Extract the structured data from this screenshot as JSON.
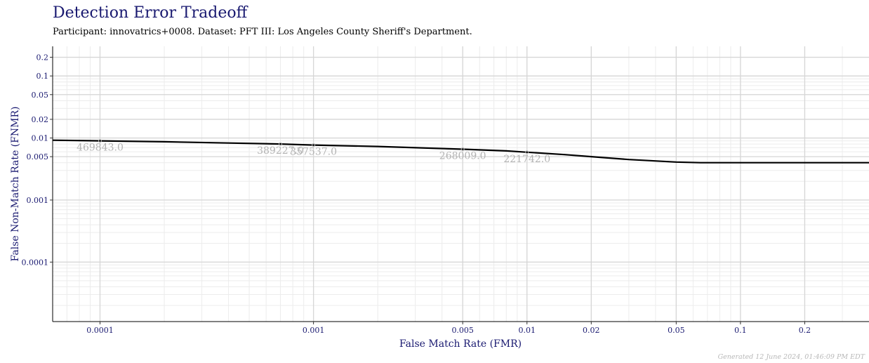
{
  "chart_data": {
    "type": "line",
    "title": "Detection Error Tradeoff",
    "subtitle": "Participant: innovatrics+0008. Dataset: PFT III: Los Angeles County Sheriff's Department.",
    "xlabel": "False Match Rate (FMR)",
    "ylabel": "False Non-Match Rate (FNMR)",
    "x_scale": "log",
    "y_scale": "log",
    "xlim": [
      6e-05,
      0.4
    ],
    "ylim": [
      1.1e-05,
      0.3
    ],
    "grid": true,
    "x_ticks": [
      0.0001,
      0.001,
      0.005,
      0.01,
      0.02,
      0.05,
      0.1,
      0.2
    ],
    "x_tick_labels": [
      "0.0001",
      "0.001",
      "0.005",
      "0.01",
      "0.02",
      "0.05",
      "0.1",
      "0.2"
    ],
    "y_ticks": [
      0.2,
      0.1,
      0.05,
      0.02,
      0.01,
      0.005,
      0.001,
      0.0001
    ],
    "y_tick_labels": [
      "0.2",
      "0.1",
      "0.05",
      "0.02",
      "0.01",
      "0.005",
      "0.001",
      "0.0001"
    ],
    "series": [
      {
        "color": "#000000",
        "x": [
          6e-05,
          0.0001,
          0.0002,
          0.0004,
          0.0007,
          0.001,
          0.002,
          0.005,
          0.008,
          0.01,
          0.015,
          0.02,
          0.03,
          0.05,
          0.065,
          0.1,
          0.2,
          0.4
        ],
        "y": [
          0.0092,
          0.009,
          0.0087,
          0.0083,
          0.008,
          0.0077,
          0.0073,
          0.0066,
          0.0062,
          0.0059,
          0.0054,
          0.005,
          0.0045,
          0.0041,
          0.004,
          0.004,
          0.004,
          0.004
        ]
      }
    ],
    "annotations": [
      {
        "text": "469843.0",
        "x": 0.0001,
        "y": 0.009
      },
      {
        "text": "389227.0",
        "x": 0.0007,
        "y": 0.008
      },
      {
        "text": "357537.0",
        "x": 0.001,
        "y": 0.0077
      },
      {
        "text": "268009.0",
        "x": 0.005,
        "y": 0.0066
      },
      {
        "text": "221742.0",
        "x": 0.01,
        "y": 0.0059
      }
    ]
  },
  "footer": "Generated 12 June 2024, 01:46:09 PM EDT"
}
